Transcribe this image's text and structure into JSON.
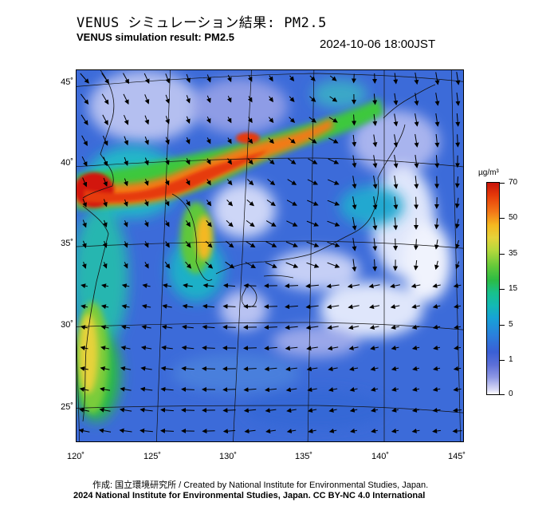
{
  "header": {
    "title_jp": "VENUS シミュレーション結果: PM2.5",
    "title_en": "VENUS simulation result: PM2.5",
    "timestamp": "2024-10-06 18:00JST"
  },
  "map": {
    "lat_ticks": [
      "45˚",
      "40˚",
      "35˚",
      "30˚",
      "25˚"
    ],
    "lon_ticks": [
      "120˚",
      "125˚",
      "130˚",
      "135˚",
      "140˚",
      "145˚"
    ],
    "colors": {
      "ocean_base": "#3c6bd9",
      "high": "#d2180c",
      "mid": "#20c05a",
      "low": "#dfe6fb"
    }
  },
  "legend": {
    "unit": "µg/m³",
    "ticks": [
      "70",
      "50",
      "35",
      "15",
      "5",
      "1",
      "0"
    ]
  },
  "footer": {
    "credit": "作成: 国立環境研究所 / Created by National Institute for Environmental Studies, Japan.",
    "copyright": "2024 National Institute for Environmental Studies, Japan. CC BY-NC 4.0 International"
  }
}
